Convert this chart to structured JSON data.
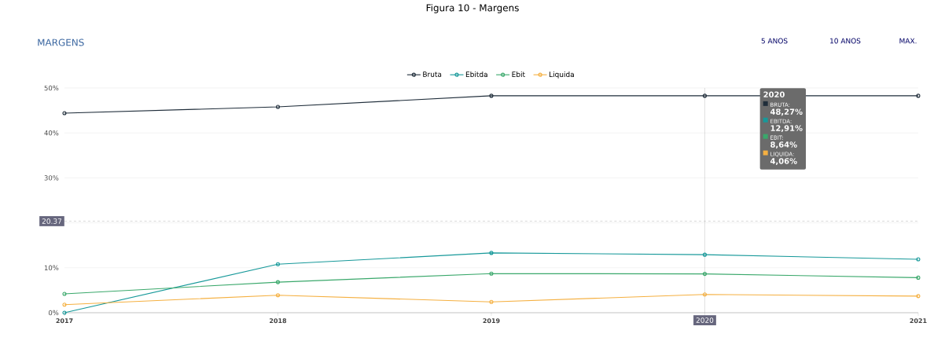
{
  "chart_data": {
    "type": "line",
    "title": "MARGENS",
    "x": [
      2017,
      2018,
      2019,
      2020,
      2021
    ],
    "series": [
      {
        "name": "Bruta",
        "color": "#1f2d3a",
        "values": [
          44.4,
          45.8,
          48.27,
          48.27,
          48.27
        ]
      },
      {
        "name": "Ebitda",
        "color": "#17999a",
        "values": [
          0,
          10.8,
          13.3,
          12.91,
          11.9
        ]
      },
      {
        "name": "Ebit",
        "color": "#3aa86b",
        "values": [
          4.2,
          6.8,
          8.7,
          8.64,
          7.8
        ]
      },
      {
        "name": "Liquida",
        "color": "#f5b041",
        "values": [
          1.8,
          3.9,
          2.4,
          4.06,
          3.7
        ]
      }
    ],
    "xlim": [
      2017,
      2021
    ],
    "xticks": [
      2017,
      2018,
      2019,
      {
        "value": 2020,
        "label": null
      },
      2021
    ],
    "ylim": [
      0,
      50
    ],
    "yticks": [
      {
        "value": 0,
        "label": "0%"
      },
      {
        "value": 10,
        "label": "10%"
      },
      {
        "value": 20,
        "label": null
      },
      {
        "value": 30,
        "label": "30%"
      },
      {
        "value": 40,
        "label": "40%"
      },
      {
        "value": 50,
        "label": "50%"
      }
    ],
    "ref_lines": [
      {
        "axis": "y",
        "value": 20.37,
        "label": "20.37",
        "color": "#9e9e9e",
        "line_style": "dashed"
      },
      {
        "axis": "x",
        "value": 2020,
        "label": "2020",
        "color": "#b0b0b0",
        "line_style": "solid"
      }
    ],
    "grid": "y",
    "legend": "top",
    "marker": "circle",
    "line_style": "solid",
    "annotations": [
      "Figura 10 - Margens",
      "5 ANOS",
      "10 ANOS",
      "MAX.",
      "2020",
      "BRUTA:",
      "48,27%",
      "EBITDA:",
      "12,91%",
      "EBIT:",
      "8,64%",
      "LIQUIDA:",
      "4,06%"
    ]
  }
}
